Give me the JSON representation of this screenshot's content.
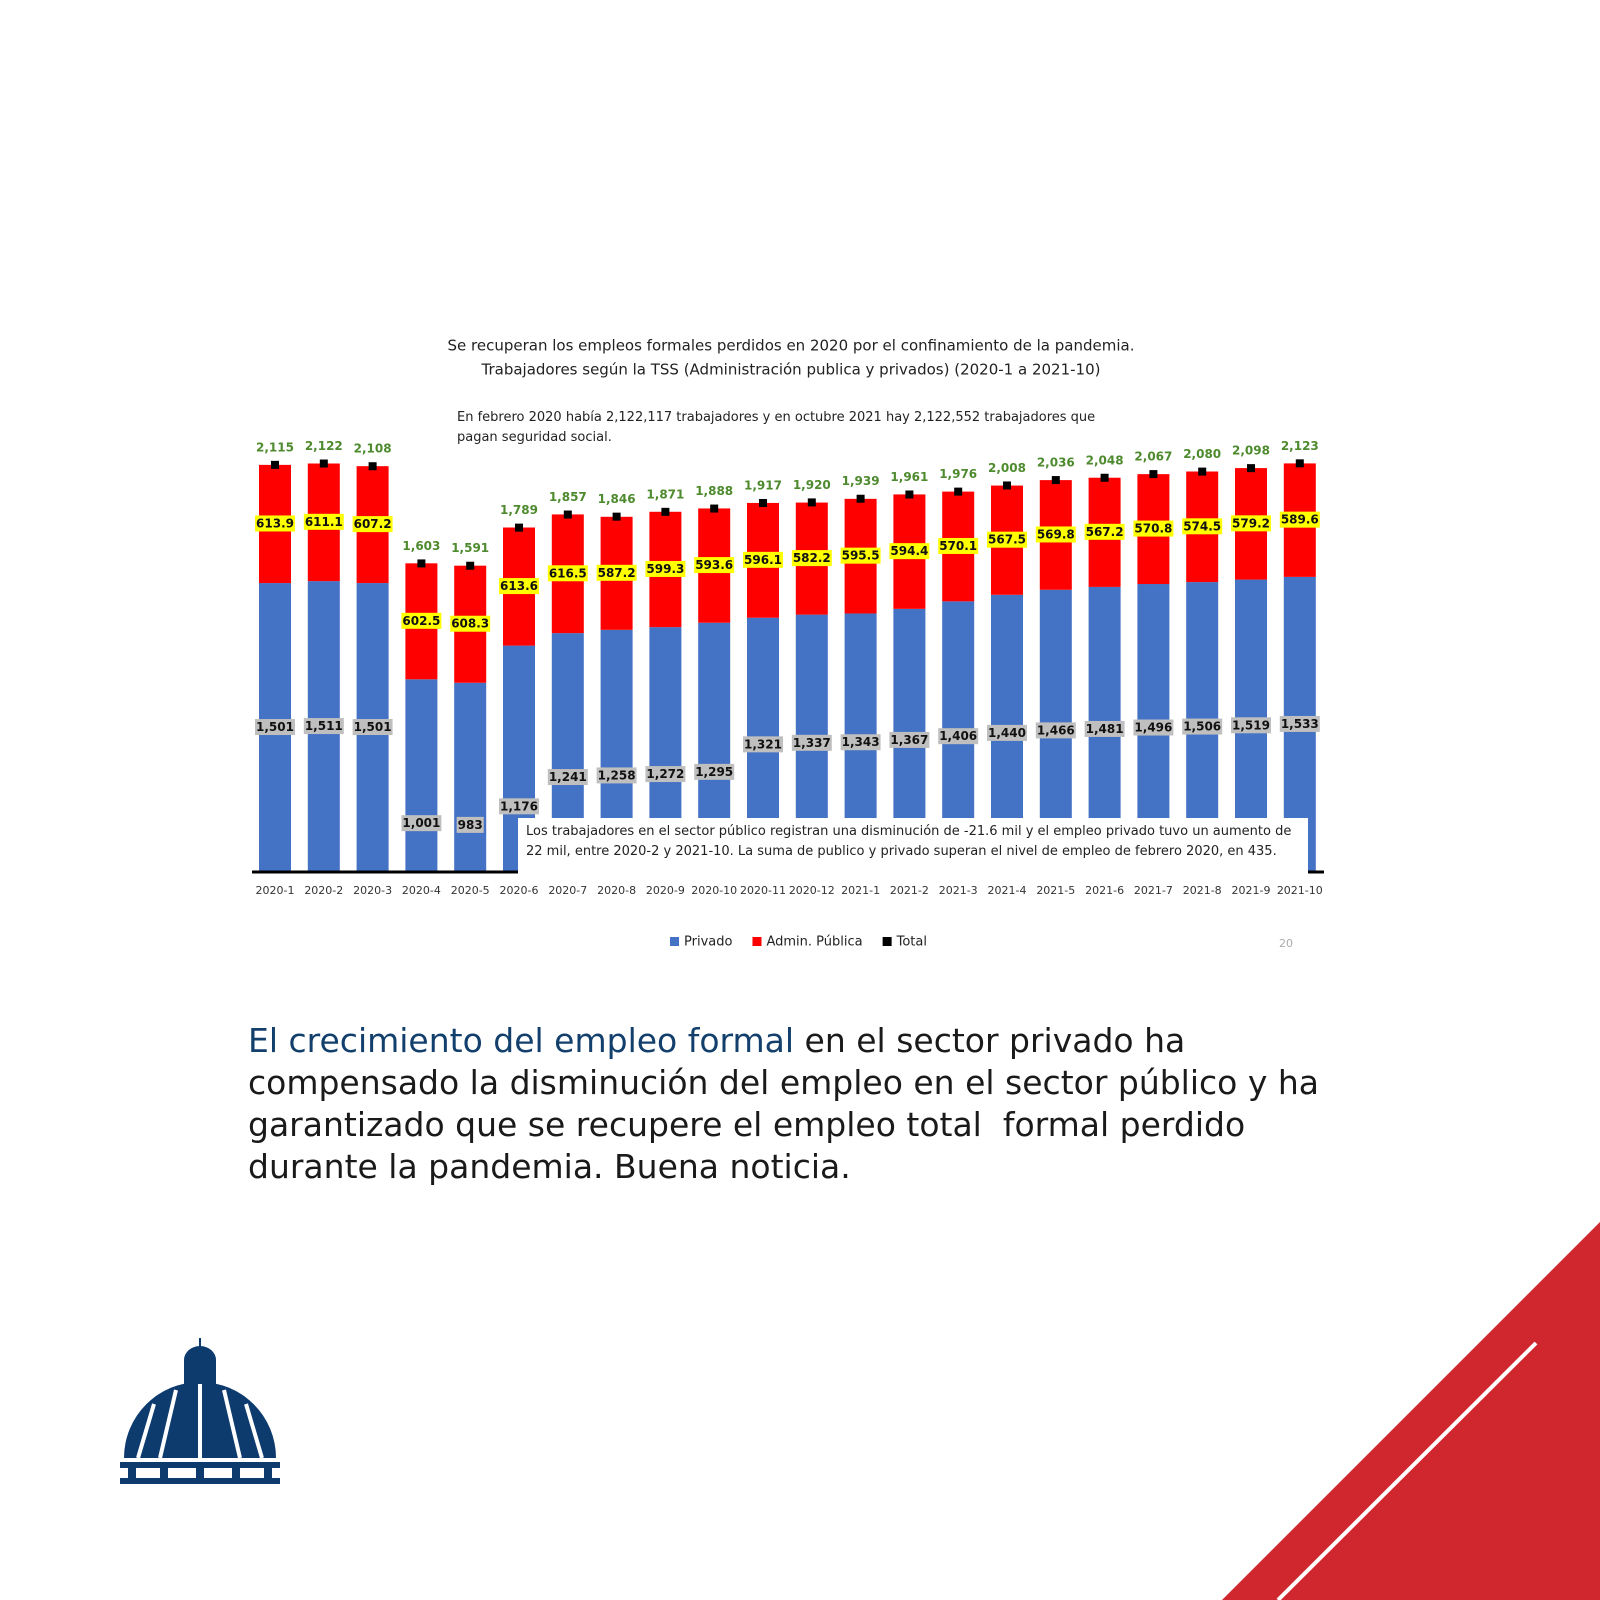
{
  "chart_data": {
    "type": "bar",
    "stacked": true,
    "title": "Se recuperan los empleos formales perdidos en 2020 por el confinamiento de la pandemia.",
    "subtitle": "Trabajadores según la TSS (Administración publica y privados) (2020-1 a 2021-10)",
    "annotations": [
      "En febrero 2020 había 2,122,117 trabajadores y en octubre 2021 hay 2,122,552 trabajadores que pagan seguridad social.",
      "Los trabajadores en el sector público registran una disminución de -21.6 mil y el empleo privado tuvo un aumento de 22 mil, entre 2020-2 y 2021-10. La suma de publico y privado superan el nivel de empleo de febrero 2020, en 435."
    ],
    "page_number": "20",
    "categories": [
      "2020-1",
      "2020-2",
      "2020-3",
      "2020-4",
      "2020-5",
      "2020-6",
      "2020-7",
      "2020-8",
      "2020-9",
      "2020-10",
      "2020-11",
      "2020-12",
      "2021-1",
      "2021-2",
      "2021-3",
      "2021-4",
      "2021-5",
      "2021-6",
      "2021-7",
      "2021-8",
      "2021-9",
      "2021-10"
    ],
    "series": [
      {
        "name": "Privado",
        "color": "#4472c4",
        "values": [
          1501,
          1511,
          1501,
          1001,
          983,
          1176,
          1241,
          1258,
          1272,
          1295,
          1321,
          1337,
          1343,
          1367,
          1406,
          1440,
          1466,
          1481,
          1496,
          1506,
          1519,
          1533
        ],
        "value_labels": [
          "1,501",
          "1,511",
          "1,501",
          "1,001",
          "983",
          "1,176",
          "1,241",
          "1,258",
          "1,272",
          "1,295",
          "1,321",
          "1,337",
          "1,343",
          "1,367",
          "1,406",
          "1,440",
          "1,466",
          "1,481",
          "1,496",
          "1,506",
          "1,519",
          "1,533"
        ]
      },
      {
        "name": "Admin. Pública",
        "color": "#ff0000",
        "values": [
          613.9,
          611.1,
          607.2,
          602.5,
          608.3,
          613.6,
          616.5,
          587.2,
          599.3,
          593.6,
          596.1,
          582.2,
          595.5,
          594.4,
          570.1,
          567.5,
          569.8,
          567.2,
          570.8,
          574.5,
          579.2,
          589.6
        ]
      },
      {
        "name": "Total",
        "color": "#000000",
        "marker": "square",
        "values": [
          2115,
          2122,
          2108,
          1603,
          1591,
          1789,
          1857,
          1846,
          1871,
          1888,
          1917,
          1920,
          1939,
          1961,
          1976,
          2008,
          2036,
          2048,
          2067,
          2080,
          2098,
          2123
        ],
        "value_labels": [
          "2,115",
          "2,122",
          "2,108",
          "1,603",
          "1,591",
          "1,789",
          "1,857",
          "1,846",
          "1,871",
          "1,888",
          "1,917",
          "1,920",
          "1,939",
          "1,961",
          "1,976",
          "2,008",
          "2,036",
          "2,048",
          "2,067",
          "2,080",
          "2,098",
          "2,123"
        ]
      }
    ]
  },
  "text": {
    "highlight": "El crecimiento del empleo formal",
    "body": "en el sector privado ha compensado la disminución del empleo en el sector público y ha garantizado que se recupere el empleo total  formal perdido durante la pandemia. Buena noticia."
  }
}
